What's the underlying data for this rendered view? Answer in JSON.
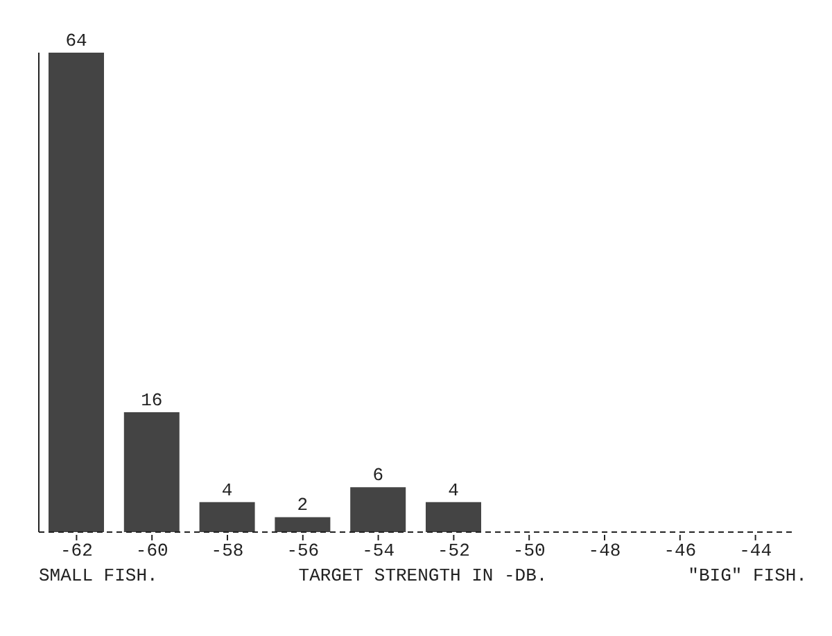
{
  "chart_data": {
    "type": "bar",
    "categories": [
      "-62",
      "-60",
      "-58",
      "-56",
      "-54",
      "-52",
      "-50",
      "-48",
      "-46",
      "-44"
    ],
    "values": [
      64,
      16,
      4,
      2,
      6,
      4,
      null,
      null,
      null,
      null
    ],
    "color": "#444444",
    "data_labels": true,
    "grid": false,
    "xlabel": "TARGET STRENGTH IN -DB.",
    "annotations": [
      "SMALL FISH.",
      "\"BIG\" FISH."
    ]
  }
}
